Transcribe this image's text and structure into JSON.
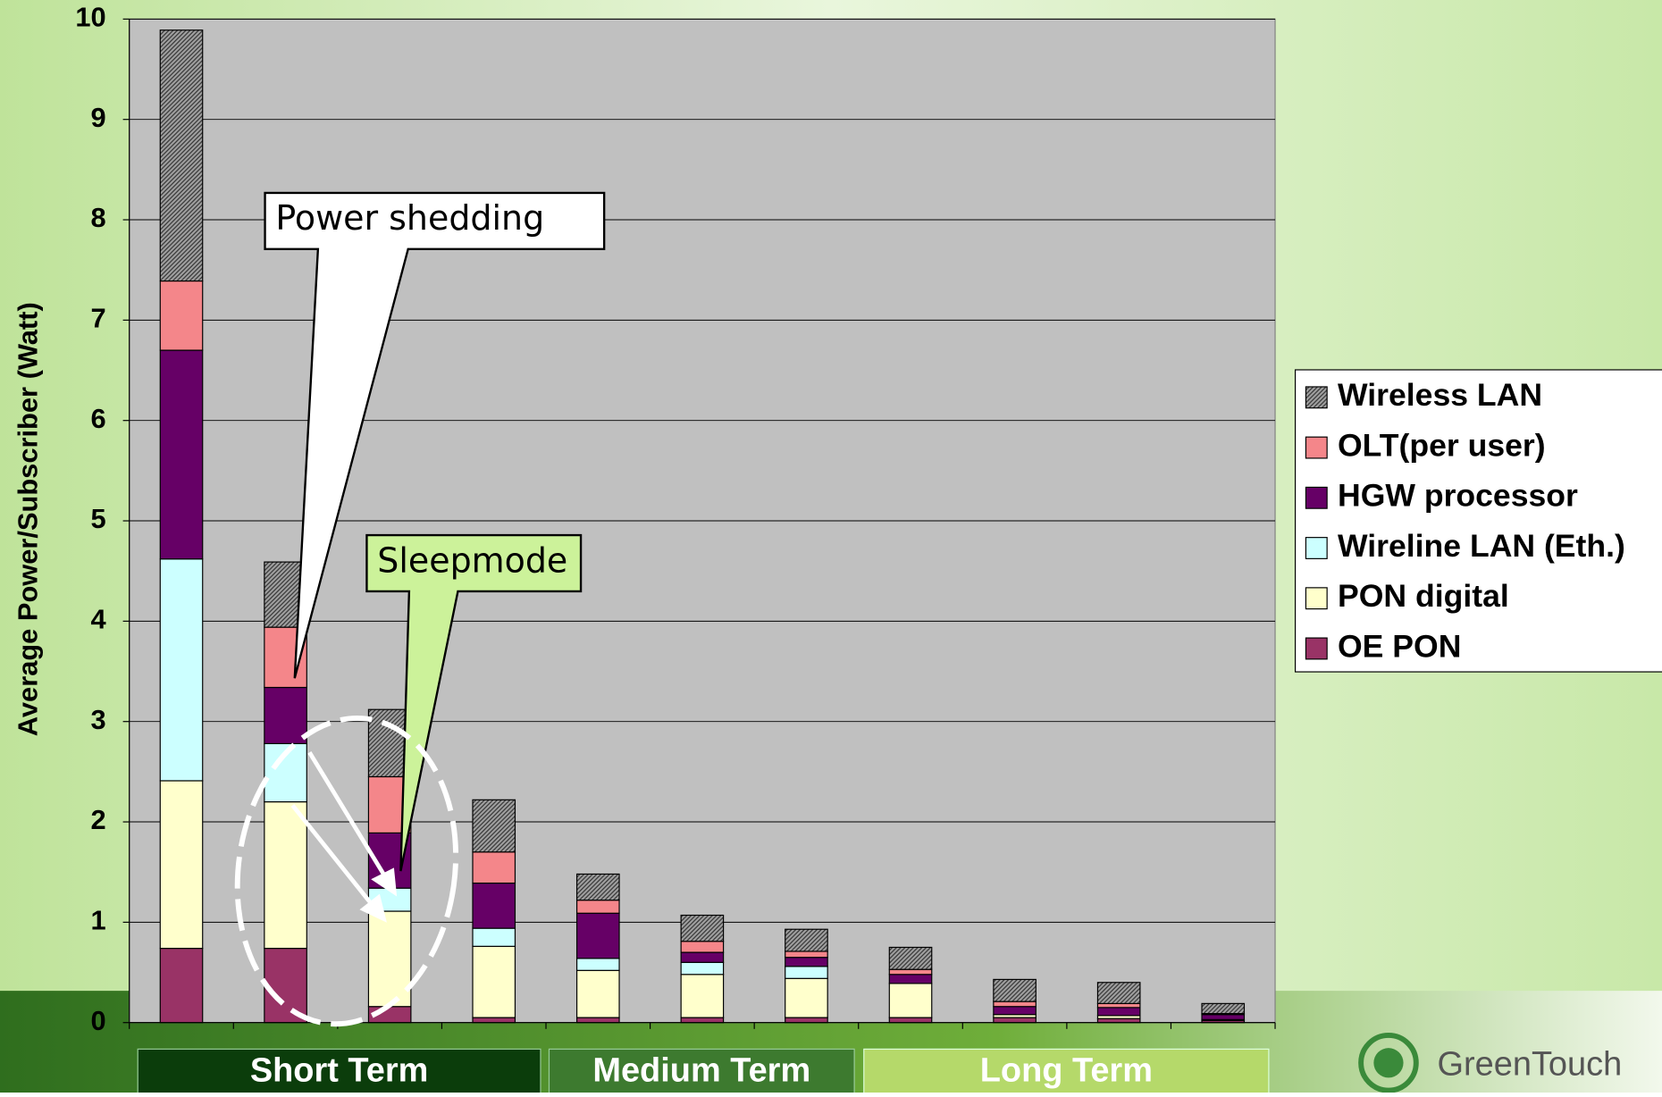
{
  "chart_data": {
    "type": "stacked_bar",
    "y_label": "Average Power/Subscriber (Watt)",
    "categories": [
      null,
      null,
      null,
      null,
      null,
      null,
      null,
      null,
      null,
      null,
      null
    ],
    "series": [
      {
        "name": "OE PON",
        "color": "#993366",
        "values": [
          0.74,
          0.74,
          0.16,
          0.05,
          0.05,
          0.05,
          0.05,
          0.05,
          0.05,
          0.04,
          0.02
        ]
      },
      {
        "name": "PON digital",
        "color": "#ffffcc",
        "values": [
          1.67,
          1.46,
          0.95,
          0.71,
          0.47,
          0.43,
          0.39,
          0.34,
          0.03,
          0.03,
          0.01
        ]
      },
      {
        "name": "Wireline LAN (Eth.)",
        "color": "#ccffff",
        "values": [
          2.21,
          0.58,
          0.23,
          0.18,
          0.12,
          0.12,
          0.12,
          0,
          0,
          0,
          0
        ]
      },
      {
        "name": "HGW processor",
        "color": "#660066",
        "values": [
          2.08,
          0.56,
          0.55,
          0.45,
          0.45,
          0.1,
          0.09,
          0.09,
          0.08,
          0.08,
          0.05
        ]
      },
      {
        "name": "OLT(per user)",
        "color": "#f4868a",
        "values": [
          0.69,
          0.6,
          0.56,
          0.31,
          0.13,
          0.11,
          0.06,
          0.05,
          0.05,
          0.04,
          0.01
        ]
      },
      {
        "name": "Wireless LAN",
        "color": "#808080",
        "pattern": "hatch",
        "values": [
          2.5,
          0.65,
          0.67,
          0.52,
          0.26,
          0.26,
          0.22,
          0.22,
          0.22,
          0.21,
          0.1
        ]
      }
    ],
    "ylim": [
      0,
      10
    ],
    "yticks": [
      0,
      1,
      2,
      3,
      4,
      5,
      6,
      7,
      8,
      9,
      10
    ],
    "grid": true,
    "legend": "right",
    "phases": [
      "Short Term",
      "Medium Term",
      "Long Term"
    ],
    "annotations": [
      "Power shedding",
      "Sleepmode"
    ],
    "logo": "GreenTouch"
  }
}
